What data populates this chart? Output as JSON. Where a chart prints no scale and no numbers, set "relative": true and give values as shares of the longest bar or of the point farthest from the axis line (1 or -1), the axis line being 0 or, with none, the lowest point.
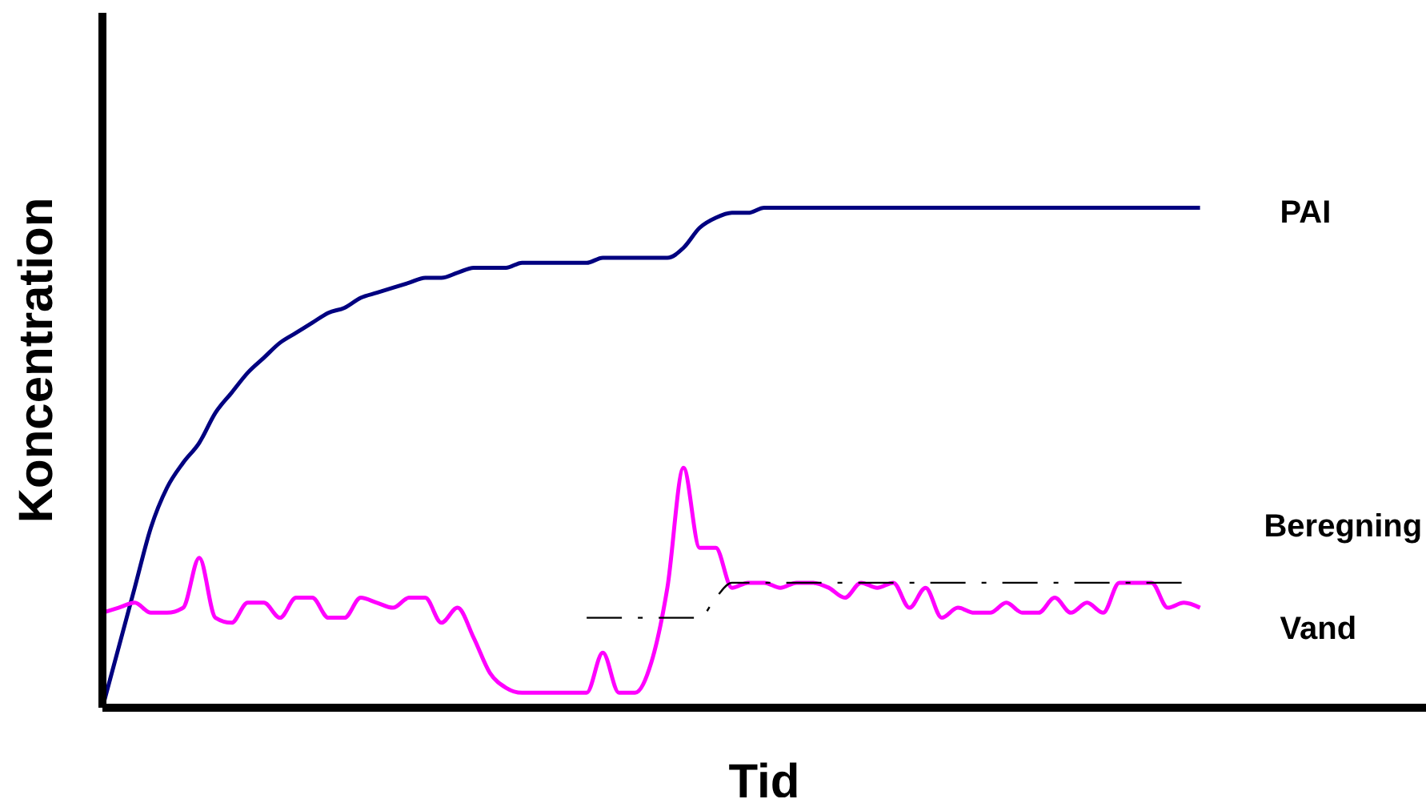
{
  "chart_data": {
    "type": "line",
    "relative": true,
    "xlabel": "Tid",
    "ylabel": "Koncentration",
    "legend": false,
    "grid": false,
    "marker": "none",
    "categories": [
      null,
      null,
      null,
      null,
      null,
      null,
      null,
      null,
      null,
      null,
      null,
      null,
      null,
      null,
      null,
      null,
      null,
      null,
      null,
      null,
      null,
      null,
      null,
      null,
      null,
      null,
      null,
      null,
      null,
      null,
      null,
      null,
      null,
      null,
      null,
      null,
      null,
      null,
      null,
      null,
      null,
      null,
      null,
      null,
      null,
      null,
      null,
      null,
      null,
      null,
      null,
      null,
      null,
      null,
      null,
      null,
      null,
      null,
      null,
      null,
      null,
      null,
      null,
      null,
      null,
      null,
      null,
      null,
      null,
      null,
      null,
      null,
      null,
      null,
      null,
      null,
      null,
      null,
      null,
      null,
      null,
      null,
      null
    ],
    "series": [
      {
        "name": "PAI",
        "color": "#000080",
        "line_style": "solid",
        "values": [
          0,
          0.12,
          0.24,
          0.36,
          0.44,
          0.49,
          0.53,
          0.59,
          0.63,
          0.67,
          0.7,
          0.73,
          0.75,
          0.77,
          0.79,
          0.8,
          0.82,
          0.83,
          0.84,
          0.85,
          0.86,
          0.86,
          0.87,
          0.88,
          0.88,
          0.88,
          0.89,
          0.89,
          0.89,
          0.89,
          0.89,
          0.9,
          0.9,
          0.9,
          0.9,
          0.9,
          0.92,
          0.96,
          0.98,
          0.99,
          0.99,
          1,
          1,
          1,
          1,
          1,
          1,
          1,
          1,
          1,
          1,
          1,
          1,
          1,
          1,
          1,
          1,
          1,
          1,
          1,
          1,
          1,
          1,
          1,
          1,
          1,
          1,
          1,
          1,
          null,
          null,
          null,
          null,
          null,
          null,
          null,
          null,
          null,
          null,
          null,
          null,
          null,
          null
        ]
      },
      {
        "name": "Vand",
        "color": "#ff00ff",
        "line_style": "solid",
        "values": [
          0.19,
          0.2,
          0.21,
          0.19,
          0.19,
          0.2,
          0.3,
          0.18,
          0.17,
          0.21,
          0.21,
          0.18,
          0.22,
          0.22,
          0.18,
          0.18,
          0.22,
          0.21,
          0.2,
          0.22,
          0.22,
          0.17,
          0.2,
          0.14,
          0.07,
          0.04,
          0.03,
          0.03,
          0.03,
          0.03,
          0.03,
          0.11,
          0.03,
          0.03,
          0.09,
          0.24,
          0.48,
          0.32,
          0.32,
          0.24,
          0.25,
          0.25,
          0.24,
          0.25,
          0.25,
          0.24,
          0.22,
          0.25,
          0.24,
          0.25,
          0.2,
          0.24,
          0.18,
          0.2,
          0.19,
          0.19,
          0.21,
          0.19,
          0.19,
          0.22,
          0.19,
          0.21,
          0.19,
          0.25,
          0.25,
          0.25,
          0.2,
          0.21,
          0.2,
          null,
          null,
          null,
          null,
          null,
          null,
          null,
          null,
          null,
          null,
          null,
          null,
          null,
          null
        ]
      },
      {
        "name": "Beregning",
        "color": "#000000",
        "line_style": "dashed",
        "values": [
          null,
          null,
          null,
          null,
          null,
          null,
          null,
          null,
          null,
          null,
          null,
          null,
          null,
          null,
          null,
          null,
          null,
          null,
          null,
          null,
          null,
          null,
          null,
          null,
          null,
          null,
          null,
          null,
          null,
          null,
          0.18,
          0.18,
          0.18,
          0.18,
          0.18,
          0.18,
          0.18,
          0.18,
          0.22,
          0.25,
          0.25,
          0.25,
          0.25,
          0.25,
          0.25,
          0.25,
          0.25,
          0.25,
          0.25,
          0.25,
          0.25,
          0.25,
          0.25,
          0.25,
          0.25,
          0.25,
          0.25,
          0.25,
          0.25,
          0.25,
          0.25,
          0.25,
          0.25,
          0.25,
          0.25,
          0.25,
          0.25,
          0.25,
          null,
          null,
          null,
          null,
          null,
          null,
          null,
          null,
          null,
          null,
          null,
          null,
          null,
          null,
          null
        ]
      }
    ]
  }
}
